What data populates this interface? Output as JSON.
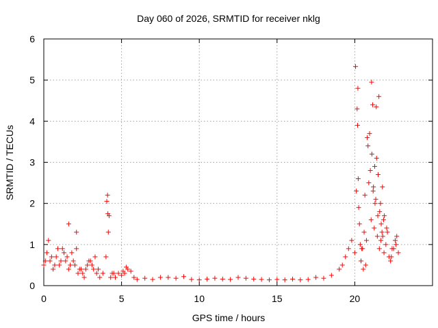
{
  "chart_data": {
    "type": "scatter",
    "title": "Day 060 of 2026, SRMTID for receiver nklg",
    "xlabel": "GPS time / hours",
    "ylabel": "SRMTID / TECUs",
    "xlim": [
      0,
      25
    ],
    "ylim": [
      0,
      6
    ],
    "xticks": [
      0,
      5,
      10,
      15,
      20
    ],
    "yticks": [
      0,
      1,
      2,
      3,
      4,
      5,
      6
    ],
    "grid": true,
    "marker": "+",
    "series_color": "#ff0000",
    "series": [
      {
        "name": "SRMTID",
        "x": [
          0.0,
          0.2,
          0.4,
          0.6,
          0.8,
          1.0,
          1.2,
          1.4,
          1.6,
          1.8,
          2.0,
          2.2,
          2.4,
          2.6,
          2.8,
          3.0,
          3.2,
          3.4,
          3.6,
          3.8,
          4.0,
          4.1,
          4.2,
          4.4,
          4.6,
          4.8,
          5.0,
          5.2,
          5.4,
          5.6,
          5.8,
          6.0,
          6.5,
          7.0,
          7.5,
          8.0,
          8.5,
          9.0,
          9.5,
          10.0,
          10.5,
          11.0,
          11.5,
          12.0,
          12.5,
          13.0,
          13.5,
          14.0,
          14.5,
          15.0,
          15.5,
          16.0,
          16.5,
          17.0,
          17.5,
          18.0,
          18.5,
          19.0,
          19.2,
          19.4,
          19.6,
          19.8,
          20.0,
          20.1,
          20.2,
          20.3,
          20.4,
          20.5,
          20.6,
          20.7,
          20.8,
          20.9,
          21.0,
          21.1,
          21.2,
          21.3,
          21.4,
          21.5,
          21.6,
          21.7,
          21.8,
          21.9,
          22.0,
          22.2,
          22.4,
          22.6,
          22.8,
          0.1,
          0.3,
          0.5,
          0.7,
          0.9,
          1.1,
          1.3,
          1.5,
          1.7,
          1.9,
          2.1,
          2.3,
          2.5,
          2.7,
          2.9,
          3.1,
          3.3,
          3.5,
          4.15,
          4.3,
          4.5,
          5.1,
          5.3,
          20.15,
          20.25,
          20.45,
          20.65,
          20.85,
          21.05,
          21.15,
          21.25,
          21.35,
          21.45,
          21.55,
          21.65,
          21.75,
          21.85,
          22.1,
          22.3,
          22.5,
          22.7,
          1.6,
          2.1,
          4.05,
          4.12,
          20.05,
          20.18,
          20.22,
          20.35,
          20.55,
          20.75,
          20.95,
          21.08,
          21.18,
          21.28,
          21.38,
          21.48,
          21.58,
          21.68,
          21.78,
          21.88,
          22.05,
          22.35,
          22.65
        ],
        "y": [
          0.5,
          0.8,
          0.6,
          0.4,
          0.7,
          0.5,
          0.9,
          0.6,
          0.4,
          0.8,
          0.5,
          0.3,
          0.4,
          0.2,
          0.5,
          0.6,
          0.4,
          0.3,
          0.2,
          0.3,
          0.7,
          2.2,
          1.7,
          0.3,
          0.2,
          0.3,
          0.25,
          0.3,
          0.4,
          0.35,
          0.2,
          0.15,
          0.18,
          0.15,
          0.2,
          0.2,
          0.18,
          0.22,
          0.15,
          0.14,
          0.16,
          0.18,
          0.16,
          0.15,
          0.2,
          0.18,
          0.16,
          0.15,
          0.14,
          0.15,
          0.14,
          0.16,
          0.14,
          0.15,
          0.2,
          0.18,
          0.25,
          0.4,
          0.5,
          0.7,
          0.9,
          1.1,
          0.8,
          2.3,
          4.8,
          1.5,
          0.6,
          0.9,
          1.3,
          0.5,
          3.6,
          2.5,
          2.8,
          3.2,
          2.4,
          2.0,
          3.1,
          2.7,
          1.8,
          1.5,
          1.2,
          1.7,
          1.0,
          0.7,
          0.9,
          1.1,
          0.8,
          0.6,
          1.1,
          0.7,
          0.5,
          0.9,
          0.6,
          0.8,
          0.7,
          0.5,
          0.6,
          0.9,
          0.4,
          0.3,
          0.4,
          0.6,
          0.5,
          0.7,
          0.4,
          1.3,
          0.2,
          0.3,
          0.35,
          0.45,
          4.3,
          1.9,
          0.9,
          2.2,
          3.4,
          1.6,
          4.4,
          1.4,
          2.1,
          1.2,
          4.6,
          2.0,
          1.3,
          1.6,
          1.3,
          0.6,
          0.9,
          1.2,
          1.5,
          1.3,
          2.05,
          1.75,
          5.33,
          3.9,
          2.6,
          1.0,
          0.4,
          1.1,
          3.7,
          4.95,
          2.3,
          2.9,
          4.35,
          1.7,
          0.9,
          1.1,
          2.4,
          0.8,
          1.4,
          0.7,
          1.0
        ]
      }
    ]
  }
}
